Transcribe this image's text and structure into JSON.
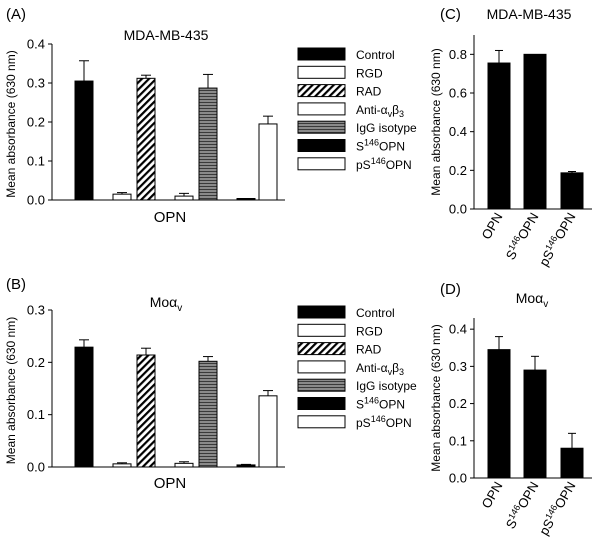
{
  "colors": {
    "black": "#000000",
    "white": "#ffffff",
    "hatch": "#000000",
    "gray": "#7a7a7a"
  },
  "legend": [
    {
      "label": "Control",
      "pattern": "black"
    },
    {
      "label": "RGD",
      "pattern": "white"
    },
    {
      "label": "RAD",
      "pattern": "hatch"
    },
    {
      "label": "Anti-α",
      "sub": "v",
      "mid": "β",
      "sub2": "3",
      "pattern": "white"
    },
    {
      "label": "IgG isotype",
      "pattern": "gray"
    },
    {
      "label": "S",
      "sup": "146",
      "tail": "OPN",
      "pattern": "black"
    },
    {
      "label": "pS",
      "sup": "146",
      "tail": "OPN",
      "pattern": "white"
    }
  ],
  "chart_data": [
    {
      "panel": "(A)",
      "type": "bar",
      "title": "MDA-MB-435",
      "xlabel": "OPN",
      "ylabel": "Mean absorbance (630 nm)",
      "ylim": [
        0,
        0.4
      ],
      "yticks": [
        "0.0",
        "0.1",
        "0.2",
        "0.3",
        "0.4"
      ],
      "series": [
        {
          "name": "Control",
          "value": 0.305,
          "error": 0.052
        },
        {
          "name": "RGD",
          "value": 0.015,
          "error": 0.004
        },
        {
          "name": "RAD",
          "value": 0.312,
          "error": 0.008
        },
        {
          "name": "Anti-αvβ3",
          "value": 0.01,
          "error": 0.007
        },
        {
          "name": "IgG isotype",
          "value": 0.287,
          "error": 0.035
        },
        {
          "name": "S146OPN",
          "value": 0.002,
          "error": 0.001
        },
        {
          "name": "pS146OPN",
          "value": 0.195,
          "error": 0.02
        }
      ]
    },
    {
      "panel": "(B)",
      "type": "bar",
      "title": "Moα",
      "title_sub": "v",
      "xlabel": "OPN",
      "ylabel": "Mean absorbance (630 nm)",
      "ylim": [
        0,
        0.3
      ],
      "yticks": [
        "0.0",
        "0.1",
        "0.2",
        "0.3"
      ],
      "series": [
        {
          "name": "Control",
          "value": 0.229,
          "error": 0.014
        },
        {
          "name": "RGD",
          "value": 0.006,
          "error": 0.002
        },
        {
          "name": "RAD",
          "value": 0.214,
          "error": 0.013
        },
        {
          "name": "Anti-αvβ3",
          "value": 0.007,
          "error": 0.003
        },
        {
          "name": "IgG isotype",
          "value": 0.202,
          "error": 0.009
        },
        {
          "name": "S146OPN",
          "value": 0.004,
          "error": 0.001
        },
        {
          "name": "pS146OPN",
          "value": 0.136,
          "error": 0.01
        }
      ]
    },
    {
      "panel": "(C)",
      "type": "bar",
      "title": "MDA-MB-435",
      "ylabel": "Mean absorbance (630 nm)",
      "ylim": [
        0,
        0.9
      ],
      "yticks": [
        "0.0",
        "0.2",
        "0.4",
        "0.6",
        "0.8"
      ],
      "categories": [
        {
          "pre": "OPN",
          "sup": "",
          "post": ""
        },
        {
          "pre": "S",
          "sup": "146",
          "post": "OPN"
        },
        {
          "pre": "pS",
          "sup": "146",
          "post": "OPN"
        }
      ],
      "values": [
        0.755,
        0.8,
        0.187
      ],
      "errors": [
        0.065,
        0.0,
        0.007
      ]
    },
    {
      "panel": "(D)",
      "type": "bar",
      "title": "Moα",
      "title_sub": "v",
      "ylabel": "Mean absorbance (630 nm)",
      "ylim": [
        0,
        0.43
      ],
      "yticks": [
        "0.0",
        "0.1",
        "0.2",
        "0.3",
        "0.4"
      ],
      "categories": [
        {
          "pre": "OPN",
          "sup": "",
          "post": ""
        },
        {
          "pre": "S",
          "sup": "146",
          "post": "OPN"
        },
        {
          "pre": "pS",
          "sup": "146",
          "post": "OPN"
        }
      ],
      "values": [
        0.345,
        0.29,
        0.08
      ],
      "errors": [
        0.035,
        0.037,
        0.04
      ]
    }
  ]
}
